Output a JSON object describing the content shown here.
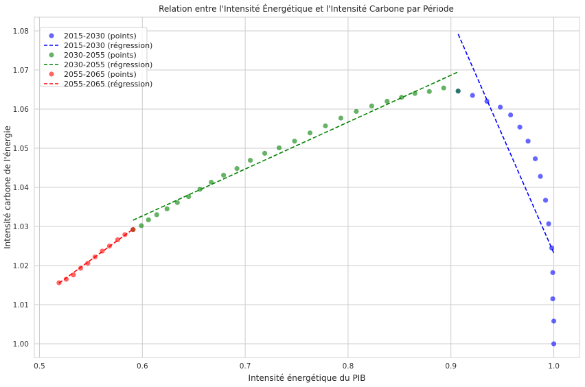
{
  "chart_data": {
    "type": "scatter",
    "title": "Relation entre l'Intensité Énergétique et l'Intensité Carbone par Période",
    "xlabel": "Intensité énergétique du PIB",
    "ylabel": "Intensité carbone de l'énergie",
    "xlim": [
      0.495,
      1.025
    ],
    "ylim": [
      0.9965,
      1.0835
    ],
    "xticks": [
      0.5,
      0.6,
      0.7,
      0.8,
      0.9,
      1.0
    ],
    "xtick_labels": [
      "0.5",
      "0.6",
      "0.7",
      "0.8",
      "0.9",
      "1.0"
    ],
    "yticks": [
      1.0,
      1.01,
      1.02,
      1.03,
      1.04,
      1.05,
      1.06,
      1.07,
      1.08
    ],
    "ytick_labels": [
      "1.00",
      "1.01",
      "1.02",
      "1.03",
      "1.04",
      "1.05",
      "1.06",
      "1.07",
      "1.08"
    ],
    "grid": true,
    "legend_position": "top-left",
    "series": [
      {
        "name": "2015-2030 (points)",
        "kind": "points",
        "color": "#0000ff",
        "x": [
          1.0,
          1.0,
          0.999,
          0.999,
          0.998,
          0.995,
          0.992,
          0.987,
          0.982,
          0.975,
          0.967,
          0.958,
          0.948,
          0.935,
          0.921,
          0.907
        ],
        "y": [
          1.0,
          1.0058,
          1.0115,
          1.0182,
          1.0245,
          1.0307,
          1.0367,
          1.0428,
          1.0473,
          1.0518,
          1.0554,
          1.0585,
          1.0605,
          1.062,
          1.0635,
          1.0646
        ]
      },
      {
        "name": "2015-2030 (régression)",
        "kind": "line",
        "color": "#0000ff",
        "x": [
          0.907,
          1.0
        ],
        "y": [
          1.0792,
          1.0232
        ]
      },
      {
        "name": "2030-2055 (points)",
        "kind": "points",
        "color": "#008000",
        "x": [
          0.907,
          0.893,
          0.879,
          0.865,
          0.852,
          0.838,
          0.823,
          0.808,
          0.793,
          0.778,
          0.763,
          0.748,
          0.733,
          0.719,
          0.705,
          0.692,
          0.679,
          0.667,
          0.656,
          0.645,
          0.634,
          0.624,
          0.614,
          0.606,
          0.599,
          0.591
        ],
        "y": [
          1.0646,
          1.0654,
          1.0645,
          1.064,
          1.063,
          1.062,
          1.0608,
          1.0594,
          1.0577,
          1.0557,
          1.0539,
          1.0518,
          1.0501,
          1.0487,
          1.0469,
          1.0448,
          1.0431,
          1.0413,
          1.0395,
          1.0376,
          1.0361,
          1.0345,
          1.033,
          1.0317,
          1.0302,
          1.0292
        ]
      },
      {
        "name": "2030-2055 (régression)",
        "kind": "line",
        "color": "#008000",
        "x": [
          0.591,
          0.907
        ],
        "y": [
          1.0316,
          1.0695
        ]
      },
      {
        "name": "2055-2065 (points)",
        "kind": "points",
        "color": "#ff0000",
        "x": [
          0.591,
          0.583,
          0.576,
          0.568,
          0.561,
          0.554,
          0.547,
          0.54,
          0.533,
          0.526,
          0.519
        ],
        "y": [
          1.0292,
          1.0279,
          1.0266,
          1.025,
          1.0237,
          1.0222,
          1.0206,
          1.0193,
          1.0176,
          1.0165,
          1.0156
        ]
      },
      {
        "name": "2055-2065 (régression)",
        "kind": "line",
        "color": "#ff0000",
        "x": [
          0.519,
          0.591
        ],
        "y": [
          1.0155,
          1.0293
        ]
      }
    ]
  }
}
